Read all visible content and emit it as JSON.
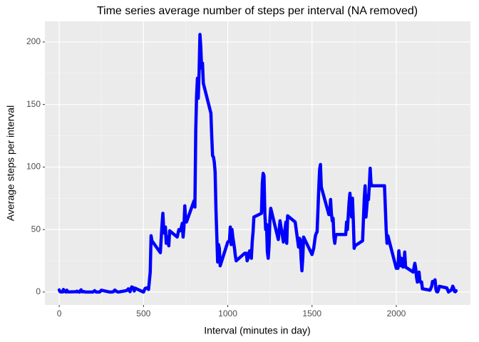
{
  "chart_data": {
    "type": "line",
    "title": "Time series average number of steps per interval (NA removed)",
    "x_label": "Interval (minutes in day)",
    "y_label": "Average steps per interval",
    "x": [
      0,
      5,
      10,
      15,
      20,
      25,
      30,
      35,
      40,
      45,
      50,
      55,
      100,
      105,
      110,
      115,
      120,
      125,
      130,
      135,
      140,
      145,
      150,
      155,
      200,
      210,
      220,
      230,
      240,
      250,
      300,
      310,
      320,
      330,
      340,
      350,
      400,
      410,
      420,
      430,
      440,
      445,
      450,
      500,
      510,
      520,
      530,
      540,
      545,
      550,
      600,
      610,
      615,
      620,
      625,
      630,
      635,
      640,
      645,
      650,
      655,
      700,
      710,
      720,
      730,
      735,
      740,
      745,
      750,
      755,
      800,
      805,
      810,
      815,
      820,
      825,
      830,
      835,
      840,
      845,
      850,
      855,
      900,
      905,
      910,
      915,
      920,
      925,
      930,
      935,
      940,
      945,
      950,
      955,
      1000,
      1010,
      1015,
      1020,
      1025,
      1030,
      1040,
      1045,
      1050,
      1100,
      1110,
      1115,
      1120,
      1125,
      1130,
      1140,
      1145,
      1150,
      1155,
      1200,
      1205,
      1210,
      1215,
      1220,
      1225,
      1230,
      1235,
      1240,
      1245,
      1250,
      1255,
      1300,
      1310,
      1330,
      1345,
      1350,
      1355,
      1400,
      1420,
      1425,
      1430,
      1435,
      1440,
      1445,
      1450,
      1500,
      1510,
      1520,
      1525,
      1530,
      1535,
      1540,
      1545,
      1550,
      1555,
      1600,
      1605,
      1610,
      1615,
      1620,
      1625,
      1630,
      1635,
      1640,
      1645,
      1650,
      1700,
      1705,
      1710,
      1715,
      1720,
      1725,
      1730,
      1735,
      1740,
      1745,
      1750,
      1755,
      1800,
      1805,
      1810,
      1815,
      1820,
      1825,
      1830,
      1835,
      1840,
      1845,
      1850,
      1855,
      1900,
      1930,
      1940,
      1945,
      1950,
      2000,
      2005,
      2010,
      2015,
      2020,
      2025,
      2030,
      2035,
      2040,
      2045,
      2050,
      2055,
      2100,
      2110,
      2115,
      2120,
      2125,
      2130,
      2135,
      2140,
      2145,
      2150,
      2155,
      2200,
      2210,
      2215,
      2220,
      2225,
      2230,
      2235,
      2240,
      2245,
      2250,
      2255,
      2300,
      2310,
      2315,
      2320,
      2325,
      2330,
      2335,
      2340,
      2345,
      2350,
      2355
    ],
    "series": [
      {
        "name": "steps",
        "color": "#0000ff",
        "values": [
          1.7,
          0.3,
          0.1,
          0.2,
          0.1,
          2.1,
          0.5,
          0.9,
          0,
          1.5,
          0.3,
          0.1,
          0.3,
          0.7,
          0.2,
          0.3,
          0,
          1.1,
          1.8,
          0.2,
          0.2,
          0.4,
          0.3,
          0,
          0,
          1.1,
          0,
          0,
          0,
          1.5,
          0,
          0,
          0.2,
          1.6,
          0.5,
          0,
          1.2,
          2.6,
          0.3,
          4.1,
          3.5,
          0.8,
          3.1,
          0,
          3,
          3.3,
          2.1,
          16,
          45,
          41,
          31.5,
          54,
          63,
          50,
          47,
          52,
          39,
          44,
          44,
          37,
          49,
          44,
          50,
          49,
          55,
          44,
          52,
          69,
          58,
          56,
          73,
          68,
          129,
          157,
          171,
          155,
          177,
          206,
          196,
          179,
          183,
          167,
          143,
          124,
          109,
          108,
          104,
          96,
          66,
          45,
          24,
          38,
          35,
          21,
          40,
          41,
          52,
          38,
          50,
          44,
          35,
          29,
          25,
          31,
          31,
          25,
          27,
          31,
          33,
          27,
          40,
          48,
          60,
          63,
          87,
          95,
          93,
          63,
          50,
          54,
          32,
          27,
          37,
          58,
          67,
          42,
          57,
          40,
          56,
          39,
          61,
          56,
          36,
          43,
          42,
          27,
          17,
          27,
          44,
          30,
          35,
          45,
          47,
          48,
          65,
          83,
          98,
          102,
          84,
          62,
          62,
          74,
          63,
          57,
          59,
          44,
          39,
          45,
          46,
          46,
          46,
          56,
          50,
          61,
          72,
          79,
          69,
          60,
          75,
          57,
          35,
          37,
          41,
          58,
          75,
          85,
          60,
          68,
          77,
          74,
          85,
          99,
          87,
          85,
          85,
          85,
          50,
          39,
          45,
          19,
          19,
          19,
          33,
          27,
          21,
          27,
          21,
          20,
          21,
          32,
          20,
          16,
          23,
          19,
          12,
          8,
          14,
          16,
          8.7,
          7.8,
          8.1,
          2.6,
          1.5,
          4.6,
          8.5,
          7.5,
          8.7,
          9.8,
          2.2,
          0.3,
          0.1,
          1.6,
          4.6,
          3.3,
          0,
          0.8,
          1,
          1.6,
          2.6,
          4.7,
          3.3,
          0.6,
          0.2,
          1.1
        ]
      }
    ],
    "xlim": [
      -85,
      2440
    ],
    "xticks": [
      0,
      500,
      1000,
      1500,
      2000
    ],
    "xminor": [
      250,
      750,
      1250,
      1750,
      2250
    ],
    "ylim": [
      -10.31,
      216.48
    ],
    "yticks": [
      0,
      50,
      100,
      150,
      200
    ],
    "yminor": [
      25,
      75,
      125,
      175
    ],
    "grid": true
  }
}
